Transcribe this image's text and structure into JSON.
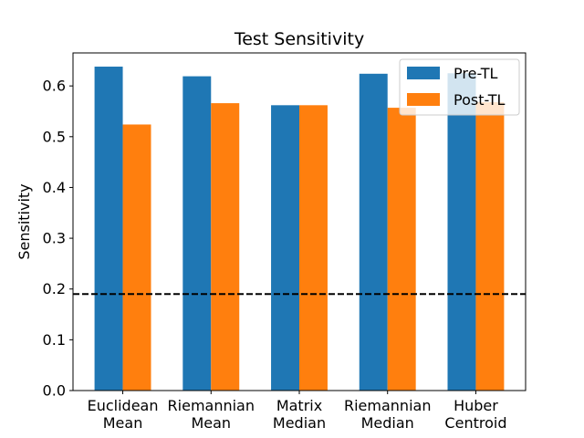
{
  "chart_data": {
    "type": "bar",
    "title": "Test Sensitivity",
    "xlabel": "",
    "ylabel": "Sensitivity",
    "ylim": [
      0,
      0.665
    ],
    "yticks": [
      0.0,
      0.1,
      0.2,
      0.3,
      0.4,
      0.5,
      0.6
    ],
    "ytick_labels": [
      "0.0",
      "0.1",
      "0.2",
      "0.3",
      "0.4",
      "0.5",
      "0.6"
    ],
    "categories": [
      [
        "Euclidean",
        "Mean"
      ],
      [
        "Riemannian",
        "Mean"
      ],
      [
        "Matrix",
        "Median"
      ],
      [
        "Riemannian",
        "Median"
      ],
      [
        "Huber",
        "Centroid"
      ]
    ],
    "series": [
      {
        "name": "Pre-TL",
        "color": "#1f77b4",
        "values": [
          0.638,
          0.619,
          0.562,
          0.624,
          0.625
        ]
      },
      {
        "name": "Post-TL",
        "color": "#ff7f0e",
        "values": [
          0.524,
          0.566,
          0.562,
          0.557,
          0.568
        ]
      }
    ],
    "reference_line": {
      "value": 0.19,
      "style": "dashed",
      "color": "#000000"
    },
    "legend": {
      "placement": "top-right"
    },
    "grid": false
  }
}
